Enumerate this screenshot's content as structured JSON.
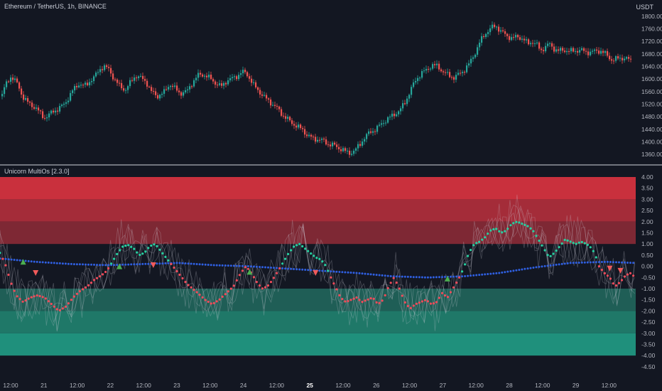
{
  "header": {
    "symbol_title": "Ethereum / TetherUS, 1h, BINANCE",
    "currency": "USDT"
  },
  "indicator": {
    "title": "Unicorn MultiOs [2.3.0]"
  },
  "colors": {
    "background": "#131722",
    "bear_candle": "#ef5350",
    "bull_candle": "#26a69a",
    "bull_line": "#26d0a0",
    "bear_line": "#ef4b5a",
    "signal_line": "#2f5fe0",
    "zone_red_1": "#c9303d",
    "zone_red_2": "#a42c39",
    "zone_red_3": "#7e2834",
    "zone_green_1": "#1f5e56",
    "zone_green_2": "#1f7868",
    "zone_green_3": "#1f907c"
  },
  "chart_data": [
    {
      "type": "candlestick",
      "title": "Ethereum / TetherUS, 1h, BINANCE",
      "ylabel": "USDT",
      "y_ticks": [
        1800,
        1760,
        1720,
        1680,
        1640,
        1600,
        1560,
        1520,
        1480,
        1440,
        1400,
        1360
      ],
      "y_tick_labels": [
        "1800.00",
        "1760.00",
        "1720.00",
        "1680.00",
        "1640.00",
        "1600.00",
        "1560.00",
        "1520.00",
        "1480.00",
        "1440.00",
        "1400.00",
        "1360.00"
      ],
      "ylim": [
        1340,
        1820
      ],
      "close_path": [
        [
          0,
          1545
        ],
        [
          8,
          1585
        ],
        [
          15,
          1610
        ],
        [
          22,
          1590
        ],
        [
          30,
          1548
        ],
        [
          40,
          1520
        ],
        [
          50,
          1508
        ],
        [
          58,
          1482
        ],
        [
          62,
          1478
        ],
        [
          70,
          1490
        ],
        [
          80,
          1505
        ],
        [
          90,
          1520
        ],
        [
          100,
          1560
        ],
        [
          110,
          1585
        ],
        [
          120,
          1578
        ],
        [
          127,
          1598
        ],
        [
          133,
          1610
        ],
        [
          140,
          1632
        ],
        [
          145,
          1642
        ],
        [
          152,
          1630
        ],
        [
          160,
          1600
        ],
        [
          167,
          1578
        ],
        [
          175,
          1565
        ],
        [
          183,
          1590
        ],
        [
          190,
          1612
        ],
        [
          198,
          1602
        ],
        [
          205,
          1590
        ],
        [
          212,
          1560
        ],
        [
          220,
          1545
        ],
        [
          230,
          1558
        ],
        [
          238,
          1585
        ],
        [
          245,
          1570
        ],
        [
          252,
          1555
        ],
        [
          262,
          1560
        ],
        [
          270,
          1590
        ],
        [
          278,
          1612
        ],
        [
          285,
          1615
        ],
        [
          290,
          1608
        ],
        [
          296,
          1600
        ],
        [
          302,
          1588
        ],
        [
          310,
          1575
        ],
        [
          318,
          1595
        ],
        [
          326,
          1602
        ],
        [
          333,
          1610
        ],
        [
          338,
          1620
        ],
        [
          343,
          1622
        ],
        [
          348,
          1612
        ],
        [
          356,
          1580
        ],
        [
          364,
          1560
        ],
        [
          372,
          1540
        ],
        [
          380,
          1525
        ],
        [
          390,
          1505
        ],
        [
          397,
          1485
        ],
        [
          402,
          1475
        ],
        [
          410,
          1460
        ],
        [
          418,
          1448
        ],
        [
          425,
          1438
        ],
        [
          432,
          1420
        ],
        [
          440,
          1410
        ],
        [
          448,
          1408
        ],
        [
          455,
          1402
        ],
        [
          462,
          1392
        ],
        [
          470,
          1388
        ],
        [
          478,
          1378
        ],
        [
          486,
          1368
        ],
        [
          492,
          1365
        ],
        [
          498,
          1370
        ],
        [
          505,
          1392
        ],
        [
          512,
          1412
        ],
        [
          520,
          1432
        ],
        [
          528,
          1440
        ],
        [
          538,
          1462
        ],
        [
          546,
          1475
        ],
        [
          554,
          1488
        ],
        [
          562,
          1500
        ],
        [
          570,
          1530
        ],
        [
          578,
          1570
        ],
        [
          585,
          1600
        ],
        [
          592,
          1618
        ],
        [
          600,
          1630
        ],
        [
          607,
          1645
        ],
        [
          615,
          1640
        ],
        [
          622,
          1625
        ],
        [
          630,
          1612
        ],
        [
          638,
          1605
        ],
        [
          645,
          1615
        ],
        [
          652,
          1628
        ],
        [
          660,
          1650
        ],
        [
          668,
          1685
        ],
        [
          675,
          1720
        ],
        [
          682,
          1745
        ],
        [
          690,
          1762
        ],
        [
          697,
          1770
        ],
        [
          704,
          1752
        ],
        [
          712,
          1738
        ],
        [
          720,
          1730
        ],
        [
          728,
          1735
        ],
        [
          735,
          1728
        ],
        [
          742,
          1712
        ],
        [
          748,
          1720
        ],
        [
          755,
          1708
        ],
        [
          760,
          1690
        ],
        [
          765,
          1700
        ],
        [
          772,
          1712
        ],
        [
          778,
          1698
        ],
        [
          785,
          1690
        ],
        [
          795,
          1692
        ],
        [
          805,
          1688
        ],
        [
          815,
          1693
        ],
        [
          825,
          1685
        ],
        [
          835,
          1688
        ],
        [
          845,
          1690
        ],
        [
          852,
          1678
        ],
        [
          858,
          1665
        ],
        [
          862,
          1660
        ],
        [
          868,
          1665
        ],
        [
          876,
          1668
        ],
        [
          884,
          1662
        ],
        [
          888,
          1660
        ]
      ]
    },
    {
      "type": "line",
      "title": "Unicorn MultiOs [2.3.0]",
      "y_ticks": [
        4,
        3.5,
        3,
        2.5,
        2,
        1.5,
        1,
        0.5,
        0,
        -0.5,
        -1,
        -1.5,
        -2,
        -2.5,
        -3,
        -3.5,
        -4,
        -4.5
      ],
      "y_tick_labels": [
        "4.00",
        "3.50",
        "3.00",
        "2.50",
        "2.00",
        "1.50",
        "1.00",
        "0.50",
        "0.00",
        "-0.50",
        "-1.00",
        "-1.50",
        "-2.00",
        "-2.50",
        "-3.00",
        "-3.50",
        "-4.00",
        "-4.50"
      ],
      "ylim": [
        -4.6,
        4.0
      ],
      "bands": [
        {
          "from": 3,
          "to": 4,
          "color": "#c9303d"
        },
        {
          "from": 2,
          "to": 3,
          "color": "#a42c39"
        },
        {
          "from": 1,
          "to": 2,
          "color": "#7e2834"
        },
        {
          "from": -2,
          "to": -1,
          "color": "#1f5e56"
        },
        {
          "from": -3,
          "to": -2,
          "color": "#1f7868"
        },
        {
          "from": -4,
          "to": -3,
          "color": "#1f907c"
        }
      ],
      "main_line": [
        [
          0,
          0.6
        ],
        [
          6,
          0.1
        ],
        [
          12,
          -0.7
        ],
        [
          18,
          -1.3
        ],
        [
          26,
          -1.6
        ],
        [
          34,
          -1.4
        ],
        [
          42,
          -1.3
        ],
        [
          50,
          -1.4
        ],
        [
          58,
          -1.7
        ],
        [
          66,
          -2.0
        ],
        [
          74,
          -1.8
        ],
        [
          82,
          -1.4
        ],
        [
          90,
          -1.1
        ],
        [
          98,
          -0.9
        ],
        [
          106,
          -0.6
        ],
        [
          114,
          -0.4
        ],
        [
          120,
          -0.2
        ],
        [
          126,
          0.2
        ],
        [
          132,
          0.6
        ],
        [
          138,
          0.9
        ],
        [
          144,
          0.95
        ],
        [
          150,
          0.8
        ],
        [
          156,
          0.5
        ],
        [
          162,
          0.6
        ],
        [
          168,
          0.9
        ],
        [
          174,
          1.0
        ],
        [
          180,
          0.7
        ],
        [
          186,
          0.4
        ],
        [
          192,
          0.1
        ],
        [
          198,
          -0.2
        ],
        [
          204,
          -0.5
        ],
        [
          210,
          -0.8
        ],
        [
          216,
          -1.0
        ],
        [
          222,
          -1.2
        ],
        [
          230,
          -1.5
        ],
        [
          238,
          -1.7
        ],
        [
          246,
          -1.5
        ],
        [
          254,
          -1.2
        ],
        [
          262,
          -0.9
        ],
        [
          270,
          -0.3
        ],
        [
          276,
          0.0
        ],
        [
          282,
          -0.3
        ],
        [
          288,
          -0.7
        ],
        [
          294,
          -1.0
        ],
        [
          300,
          -0.9
        ],
        [
          306,
          -0.6
        ],
        [
          312,
          -0.2
        ],
        [
          318,
          0.2
        ],
        [
          324,
          0.6
        ],
        [
          330,
          0.9
        ],
        [
          336,
          1.0
        ],
        [
          342,
          0.8
        ],
        [
          348,
          0.6
        ],
        [
          354,
          0.4
        ],
        [
          360,
          0.3
        ],
        [
          366,
          0.0
        ],
        [
          370,
          -0.4
        ],
        [
          376,
          -0.9
        ],
        [
          382,
          -1.4
        ],
        [
          388,
          -1.6
        ],
        [
          394,
          -1.5
        ],
        [
          400,
          -1.4
        ],
        [
          406,
          -1.6
        ],
        [
          412,
          -1.5
        ],
        [
          418,
          -1.4
        ],
        [
          424,
          -1.7
        ],
        [
          430,
          -1.5
        ],
        [
          436,
          -0.9
        ],
        [
          442,
          -0.5
        ],
        [
          448,
          -1.0
        ],
        [
          454,
          -1.6
        ],
        [
          460,
          -1.9
        ],
        [
          466,
          -1.7
        ],
        [
          472,
          -1.6
        ],
        [
          478,
          -1.5
        ],
        [
          484,
          -1.7
        ],
        [
          490,
          -1.6
        ],
        [
          496,
          -1.2
        ],
        [
          502,
          -1.4
        ],
        [
          508,
          -1.0
        ],
        [
          514,
          -0.6
        ],
        [
          520,
          -0.1
        ],
        [
          526,
          0.6
        ],
        [
          532,
          1.0
        ],
        [
          538,
          1.1
        ],
        [
          544,
          1.3
        ],
        [
          550,
          1.6
        ],
        [
          556,
          1.7
        ],
        [
          562,
          1.5
        ],
        [
          568,
          1.6
        ],
        [
          574,
          1.9
        ],
        [
          580,
          2.0
        ],
        [
          586,
          1.9
        ],
        [
          592,
          1.8
        ],
        [
          598,
          1.6
        ],
        [
          604,
          1.2
        ],
        [
          610,
          0.8
        ],
        [
          616,
          0.4
        ],
        [
          622,
          0.6
        ],
        [
          628,
          0.9
        ],
        [
          634,
          1.2
        ],
        [
          640,
          1.1
        ],
        [
          646,
          1.0
        ],
        [
          652,
          1.1
        ],
        [
          658,
          1.0
        ],
        [
          664,
          0.8
        ],
        [
          668,
          0.5
        ],
        [
          672,
          0.0
        ],
        [
          678,
          -0.3
        ],
        [
          684,
          -0.5
        ],
        [
          690,
          -0.9
        ],
        [
          696,
          -0.7
        ],
        [
          702,
          -0.4
        ],
        [
          708,
          -0.3
        ],
        [
          712,
          -0.5
        ]
      ],
      "signal_line": [
        [
          0,
          0.35
        ],
        [
          40,
          0.2
        ],
        [
          80,
          0.1
        ],
        [
          120,
          0.05
        ],
        [
          160,
          0.1
        ],
        [
          200,
          0.15
        ],
        [
          240,
          0.05
        ],
        [
          280,
          0.0
        ],
        [
          320,
          -0.1
        ],
        [
          360,
          -0.2
        ],
        [
          400,
          -0.3
        ],
        [
          440,
          -0.45
        ],
        [
          480,
          -0.5
        ],
        [
          520,
          -0.45
        ],
        [
          560,
          -0.3
        ],
        [
          600,
          -0.05
        ],
        [
          640,
          0.15
        ],
        [
          680,
          0.2
        ],
        [
          712,
          0.15
        ]
      ],
      "signals": [
        {
          "type": "buy",
          "x": 26,
          "y": 0.2
        },
        {
          "type": "sell",
          "x": 40,
          "y": -0.3
        },
        {
          "type": "buy",
          "x": 134,
          "y": 0.0
        },
        {
          "type": "sell",
          "x": 172,
          "y": 0.05
        },
        {
          "type": "buy",
          "x": 280,
          "y": -0.25
        },
        {
          "type": "sell",
          "x": 354,
          "y": -0.3
        },
        {
          "type": "buy",
          "x": 502,
          "y": -0.55
        },
        {
          "type": "sell",
          "x": 684,
          "y": -0.1
        },
        {
          "type": "sell",
          "x": 696,
          "y": -0.2
        }
      ]
    }
  ],
  "x_axis": {
    "ticks": [
      "12:00",
      "21",
      "12:00",
      "22",
      "12:00",
      "23",
      "12:00",
      "24",
      "12:00",
      "25",
      "12:00",
      "26",
      "12:00",
      "27",
      "12:00",
      "28",
      "12:00",
      "29",
      "12:00"
    ],
    "bold_tick": "25"
  }
}
